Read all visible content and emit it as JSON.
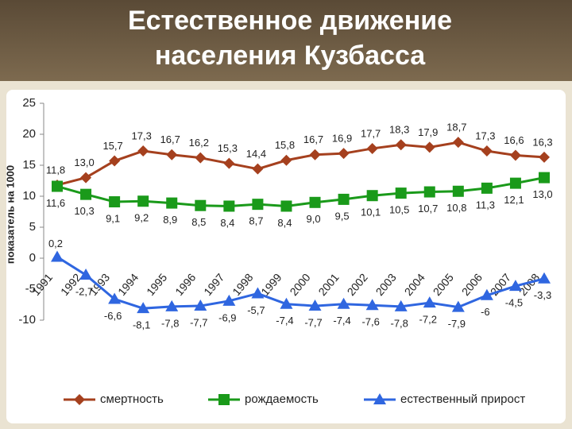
{
  "chart_data": {
    "type": "line",
    "title": "Естественное движение населения Кузбасса",
    "y_label": "показатель на 1000",
    "categories": [
      "1991",
      "1992",
      "1993",
      "1994",
      "1995",
      "1996",
      "1997",
      "1998",
      "1999",
      "2000",
      "2001",
      "2002",
      "2003",
      "2004",
      "2005",
      "2006",
      "2007",
      "2008"
    ],
    "series": [
      {
        "name": "смертность",
        "color": "#a5401e",
        "marker": "diamond",
        "values": [
          11.8,
          13.0,
          15.7,
          17.3,
          16.7,
          16.2,
          15.3,
          14.4,
          15.8,
          16.7,
          16.9,
          17.7,
          18.3,
          17.9,
          18.7,
          17.3,
          16.6,
          16.3
        ],
        "value_labels": [
          "11,8",
          "13,0",
          "15,7",
          "17,3",
          "16,7",
          "16,2",
          "15,3",
          "14,4",
          "15,8",
          "16,7",
          "16,9",
          "17,7",
          "18,3",
          "17,9",
          "18,7",
          "17,3",
          "16,6",
          "16,3"
        ]
      },
      {
        "name": "рождаемость",
        "color": "#1a9a1a",
        "marker": "square",
        "values": [
          11.6,
          10.3,
          9.1,
          9.2,
          8.9,
          8.5,
          8.4,
          8.7,
          8.4,
          9.0,
          9.5,
          10.1,
          10.5,
          10.7,
          10.8,
          11.3,
          12.1,
          13.0
        ],
        "value_labels": [
          "11,6",
          "10,3",
          "9,1",
          "9,2",
          "8,9",
          "8,5",
          "8,4",
          "8,7",
          "8,4",
          "9,0",
          "9,5",
          "10,1",
          "10,5",
          "10,7",
          "10,8",
          "11,3",
          "12,1",
          "13,0"
        ]
      },
      {
        "name": "естественный прирост",
        "color": "#2f66e0",
        "marker": "triangle",
        "values": [
          0.2,
          -2.7,
          -6.6,
          -8.1,
          -7.8,
          -7.7,
          -6.9,
          -5.7,
          -7.4,
          -7.7,
          -7.4,
          -7.6,
          -7.8,
          -7.2,
          -7.9,
          -6,
          -4.5,
          -3.3
        ],
        "value_labels": [
          "0,2",
          "-2,7",
          "-6,6",
          "-8,1",
          "-7,8",
          "-7,7",
          "-6,9",
          "-5,7",
          "-7,4",
          "-7,7",
          "-7,4",
          "-7,6",
          "-7,8",
          "-7,2",
          "-7,9",
          "-6",
          "-4,5",
          "-3,3"
        ]
      }
    ],
    "ylim": [
      -10,
      25
    ],
    "yticks": [
      -10,
      -5,
      0,
      5,
      10,
      15,
      20,
      25
    ],
    "grid": false,
    "legend": "bottom"
  }
}
